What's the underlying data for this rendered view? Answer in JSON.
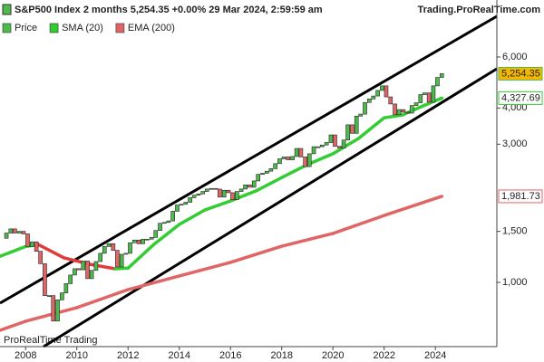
{
  "chart_data": {
    "type": "candlestick",
    "title": "S&P500 Index 2 months 5,254.35 +0.00% 29 Mar 2024, 2:59:59 am",
    "source": "Trading.ProRealTime.com",
    "watermark": "ProRealTime Trading",
    "log_scale": true,
    "xlim": [
      2007,
      2026.4
    ],
    "xticks": [
      2008,
      2010,
      2012,
      2014,
      2016,
      2018,
      2020,
      2022,
      2024
    ],
    "ylim": [
      600,
      9440
    ],
    "yticks": [
      {
        "value": 1000,
        "label": "1,000"
      },
      {
        "value": 1500,
        "label": "1,500"
      },
      {
        "value": 3000,
        "label": "3,000"
      },
      {
        "value": 4000,
        "label": "4,000"
      },
      {
        "value": 6000,
        "label": "6,000"
      }
    ],
    "series": [
      {
        "name": "Price",
        "color": "#4cbb4c",
        "down_color": "#e06666",
        "last_value_label": "5,254.35",
        "x": [
          2007.08,
          2007.25,
          2007.42,
          2007.58,
          2007.75,
          2007.92,
          2008.08,
          2008.25,
          2008.42,
          2008.58,
          2008.75,
          2008.92,
          2009.08,
          2009.25,
          2009.42,
          2009.58,
          2009.75,
          2009.92,
          2010.08,
          2010.25,
          2010.42,
          2010.58,
          2010.75,
          2010.92,
          2011.08,
          2011.25,
          2011.42,
          2011.58,
          2011.75,
          2011.92,
          2012.08,
          2012.25,
          2012.42,
          2012.58,
          2012.75,
          2012.92,
          2013.08,
          2013.25,
          2013.42,
          2013.58,
          2013.75,
          2013.92,
          2014.08,
          2014.25,
          2014.42,
          2014.58,
          2014.75,
          2014.92,
          2015.08,
          2015.25,
          2015.42,
          2015.58,
          2015.75,
          2015.92,
          2016.08,
          2016.25,
          2016.42,
          2016.58,
          2016.75,
          2016.92,
          2017.08,
          2017.25,
          2017.42,
          2017.58,
          2017.75,
          2017.92,
          2018.08,
          2018.25,
          2018.42,
          2018.58,
          2018.75,
          2018.92,
          2019.08,
          2019.25,
          2019.42,
          2019.58,
          2019.75,
          2019.92,
          2020.08,
          2020.25,
          2020.42,
          2020.58,
          2020.75,
          2020.92,
          2021.08,
          2021.25,
          2021.42,
          2021.58,
          2021.75,
          2021.92,
          2022.08,
          2022.25,
          2022.42,
          2022.58,
          2022.75,
          2022.92,
          2023.08,
          2023.25,
          2023.42,
          2023.58,
          2023.75,
          2023.92,
          2024.08,
          2024.25
        ],
        "values": [
          1420,
          1480,
          1530,
          1480,
          1500,
          1470,
          1330,
          1380,
          1280,
          1160,
          900,
          900,
          735,
          870,
          920,
          990,
          1060,
          1115,
          1105,
          1185,
          1030,
          1100,
          1180,
          1260,
          1330,
          1360,
          1290,
          1130,
          1250,
          1260,
          1370,
          1400,
          1360,
          1410,
          1410,
          1430,
          1510,
          1600,
          1610,
          1630,
          1760,
          1850,
          1860,
          1890,
          1960,
          2000,
          2020,
          2060,
          2100,
          2110,
          2100,
          1970,
          2080,
          2040,
          1930,
          2060,
          2100,
          2170,
          2130,
          2240,
          2360,
          2380,
          2420,
          2470,
          2570,
          2670,
          2710,
          2650,
          2720,
          2900,
          2710,
          2510,
          2780,
          2940,
          2940,
          2980,
          3040,
          3230,
          2950,
          2910,
          3100,
          3500,
          3270,
          3750,
          3810,
          4180,
          4300,
          4400,
          4600,
          4770,
          4370,
          4130,
          3790,
          3950,
          3870,
          3840,
          4080,
          4170,
          4450,
          4510,
          4190,
          4770,
          5100,
          5254.35
        ]
      },
      {
        "name": "SMA (20)",
        "color": "#33cc33",
        "down_color": "#e03c3c",
        "last_value_label": "4,327.69",
        "x": [
          2007.0,
          2008.0,
          2008.5,
          2009.5,
          2010.5,
          2011.5,
          2012.0,
          2013.0,
          2014.0,
          2015.0,
          2016.0,
          2017.0,
          2018.0,
          2019.0,
          2020.0,
          2021.0,
          2022.0,
          2022.7,
          2023.5,
          2024.25
        ],
        "values": [
          1230,
          1330,
          1350,
          1215,
          1155,
          1114,
          1120,
          1350,
          1585,
          1778,
          1910,
          2070,
          2300,
          2550,
          2780,
          3140,
          3700,
          3780,
          4060,
          4327.69
        ]
      },
      {
        "name": "EMA (200)",
        "color": "#e06666",
        "last_value_label": "1,981.73",
        "x": [
          2007.0,
          2008.0,
          2010.0,
          2012.0,
          2014.0,
          2016.0,
          2018.0,
          2020.0,
          2022.0,
          2024.25
        ],
        "values": [
          683,
          734,
          818,
          944,
          1052,
          1172,
          1333,
          1475,
          1702,
          1981.73
        ]
      }
    ]
  }
}
